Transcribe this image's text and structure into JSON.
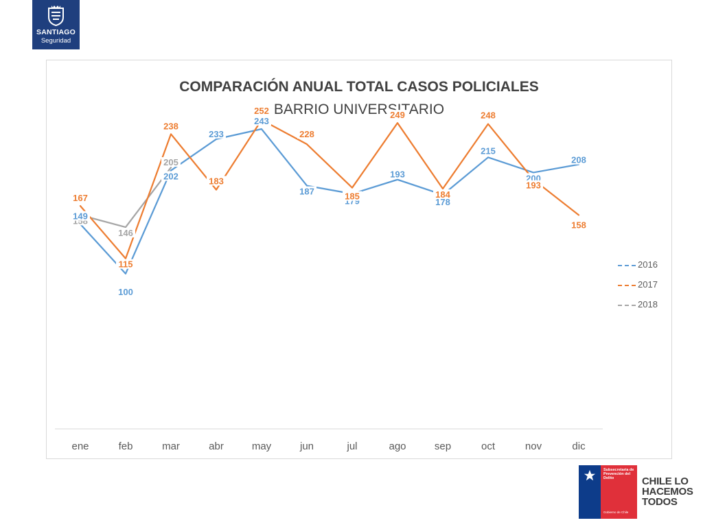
{
  "logo": {
    "line1": "SANTIAGO",
    "line2": "Seguridad"
  },
  "footer_logo": {
    "text": "Subsecretaría de Prevención del Delito",
    "subtext": "Gobierno de Chile",
    "slogan": [
      "CHILE LO",
      "HACEMOS",
      "TODOS"
    ]
  },
  "chart_data": {
    "type": "line",
    "title": "COMPARACIÓN ANUAL TOTAL CASOS POLICIALES",
    "subtitle": "BARRIO UNIVERSITARIO",
    "categories": [
      "ene",
      "feb",
      "mar",
      "abr",
      "may",
      "jun",
      "jul",
      "ago",
      "sep",
      "oct",
      "nov",
      "dic"
    ],
    "series": [
      {
        "name": "2016",
        "color": "#5b9bd5",
        "values": [
          149,
          100,
          202,
          233,
          243,
          187,
          179,
          193,
          178,
          215,
          200,
          208
        ]
      },
      {
        "name": "2017",
        "color": "#ed7d31",
        "values": [
          167,
          115,
          238,
          183,
          252,
          228,
          185,
          249,
          184,
          248,
          193,
          158
        ]
      },
      {
        "name": "2018",
        "color": "#a5a5a5",
        "values": [
          158,
          146,
          205,
          null,
          null,
          null,
          null,
          null,
          null,
          null,
          null,
          null
        ]
      }
    ],
    "ylim": [
      -50,
      300
    ],
    "grid": false,
    "data_labels": true,
    "legend_position": "right"
  }
}
